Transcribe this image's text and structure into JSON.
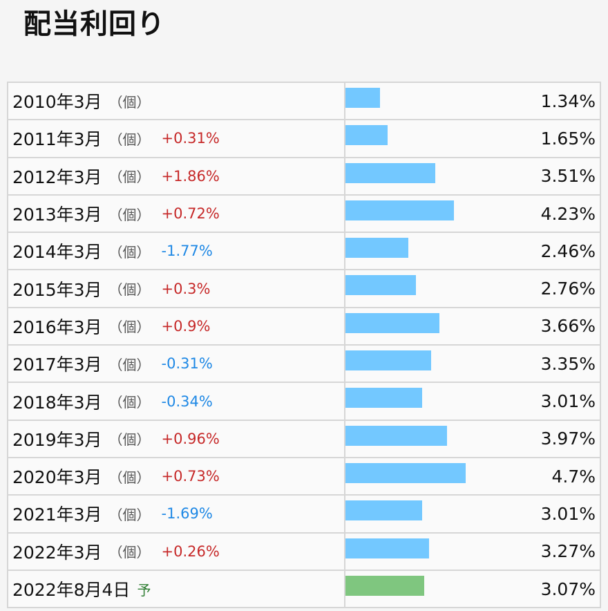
{
  "title": "配当利回り",
  "colors": {
    "bar": "#73c8ff",
    "forecast_bar": "#7fc67f",
    "positive": "#c62828",
    "negative": "#1e88e5",
    "forecast_text": "#2e7d32"
  },
  "chart_data": {
    "type": "bar",
    "orientation": "horizontal",
    "title": "配当利回り",
    "unit_label": "（個）",
    "forecast_label": "予",
    "categories": [
      "2010年3月",
      "2011年3月",
      "2012年3月",
      "2013年3月",
      "2014年3月",
      "2015年3月",
      "2016年3月",
      "2017年3月",
      "2018年3月",
      "2019年3月",
      "2020年3月",
      "2021年3月",
      "2022年3月",
      "2022年8月4日"
    ],
    "values": [
      1.34,
      1.65,
      3.51,
      4.23,
      2.46,
      2.76,
      3.66,
      3.35,
      3.01,
      3.97,
      4.7,
      3.01,
      3.27,
      3.07
    ],
    "value_labels": [
      "1.34%",
      "1.65%",
      "3.51%",
      "4.23%",
      "2.46%",
      "2.76%",
      "3.66%",
      "3.35%",
      "3.01%",
      "3.97%",
      "4.7%",
      "3.01%",
      "3.27%",
      "3.07%"
    ],
    "changes": [
      "",
      "+0.31%",
      "+1.86%",
      "+0.72%",
      "-1.77%",
      "+0.3%",
      "+0.9%",
      "-0.31%",
      "-0.34%",
      "+0.96%",
      "+0.73%",
      "-1.69%",
      "+0.26%",
      ""
    ],
    "forecast": [
      false,
      false,
      false,
      false,
      false,
      false,
      false,
      false,
      false,
      false,
      false,
      false,
      false,
      true
    ],
    "xlim": [
      0,
      4.7
    ]
  }
}
